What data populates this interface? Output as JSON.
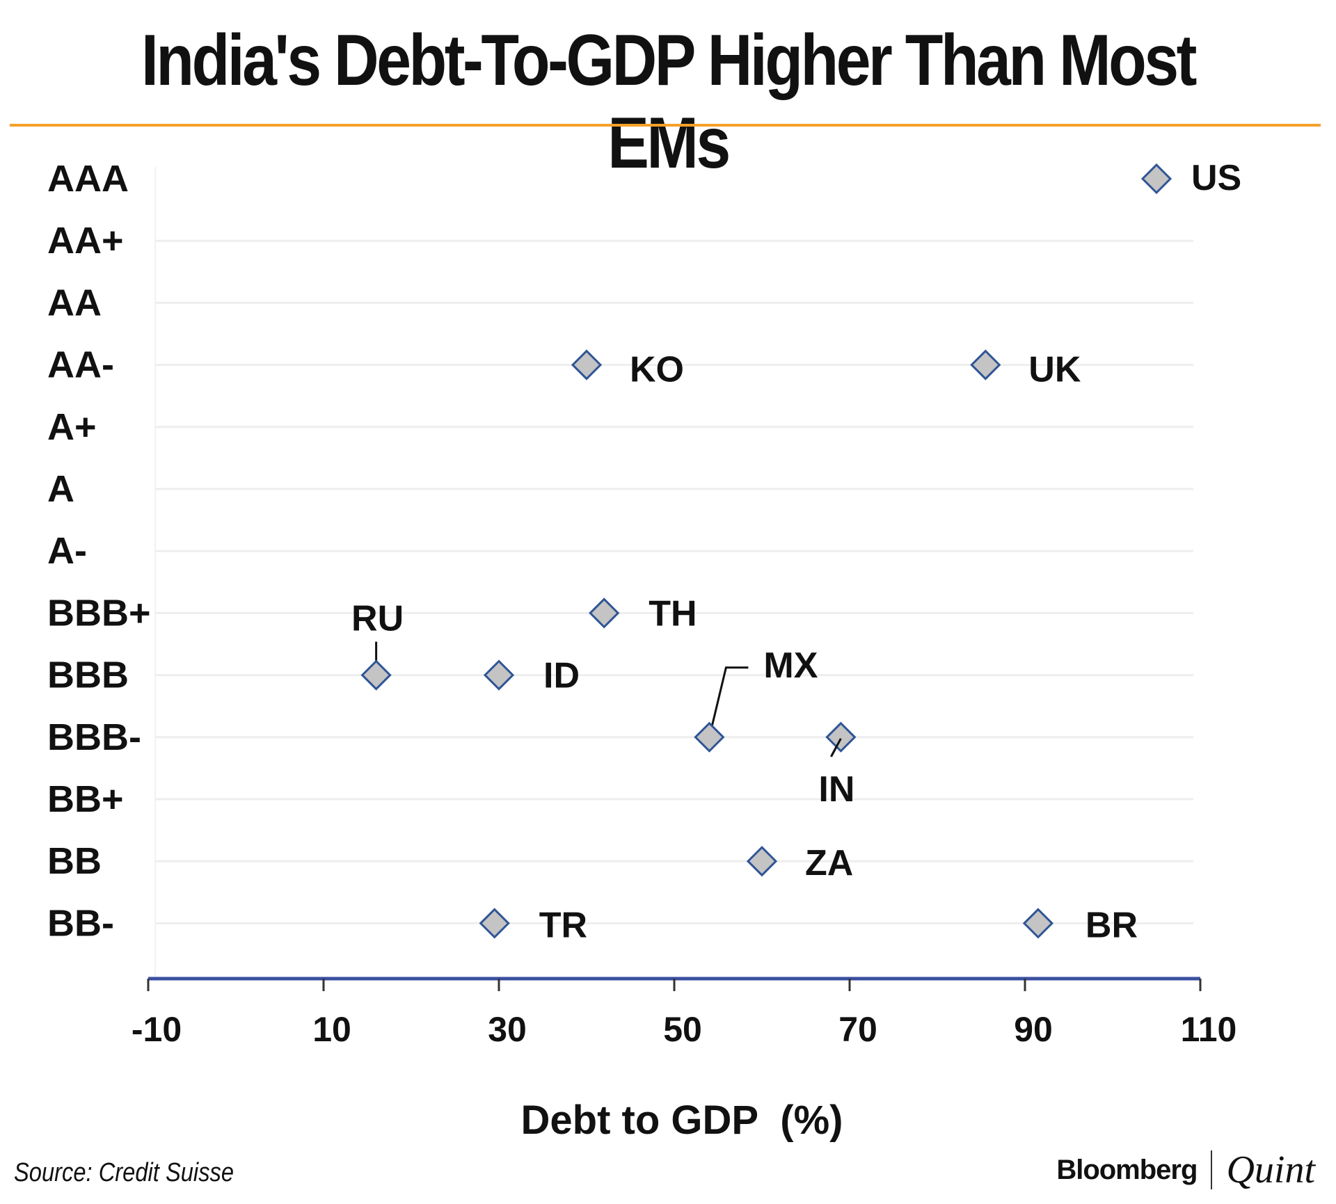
{
  "title": "India's Debt-To-GDP Higher Than Most EMs",
  "source": "Source: Credit Suisse",
  "brand": {
    "primary": "Bloomberg",
    "secondary": "Quint"
  },
  "colors": {
    "accent": "#f5a12a",
    "axis": "#3a4fa0",
    "marker_fill": "#c4c4c4",
    "marker_stroke": "#2f5596",
    "grid": "#eeeeee"
  },
  "chart_data": {
    "type": "scatter",
    "title": "India's Debt-To-GDP Higher Than Most EMs",
    "xlabel": "Debt to GDP  (%)",
    "ylabel": "",
    "xlim": [
      -10,
      110
    ],
    "xticks": [
      -10,
      10,
      30,
      50,
      70,
      90,
      110
    ],
    "xtick_labels": [
      "-10",
      "10",
      "30",
      "50",
      "70",
      "90",
      "110"
    ],
    "ratings": [
      "AAA",
      "AA+",
      "AA",
      "AA-",
      "A+",
      "A",
      "A-",
      "BBB+",
      "BBB",
      "BBB-",
      "BB+",
      "BB",
      "BB-"
    ],
    "grid": true,
    "points": [
      {
        "label": "US",
        "x": 105,
        "rating": "AAA"
      },
      {
        "label": "KO",
        "x": 40,
        "rating": "AA-"
      },
      {
        "label": "UK",
        "x": 85.5,
        "rating": "AA-"
      },
      {
        "label": "TH",
        "x": 42,
        "rating": "BBB+"
      },
      {
        "label": "RU",
        "x": 16,
        "rating": "BBB"
      },
      {
        "label": "ID",
        "x": 30,
        "rating": "BBB"
      },
      {
        "label": "MX",
        "x": 54,
        "rating": "BBB-"
      },
      {
        "label": "IN",
        "x": 69,
        "rating": "BBB-"
      },
      {
        "label": "ZA",
        "x": 60,
        "rating": "BB"
      },
      {
        "label": "TR",
        "x": 29.5,
        "rating": "BB-"
      },
      {
        "label": "BR",
        "x": 91.5,
        "rating": "BB-"
      }
    ]
  }
}
